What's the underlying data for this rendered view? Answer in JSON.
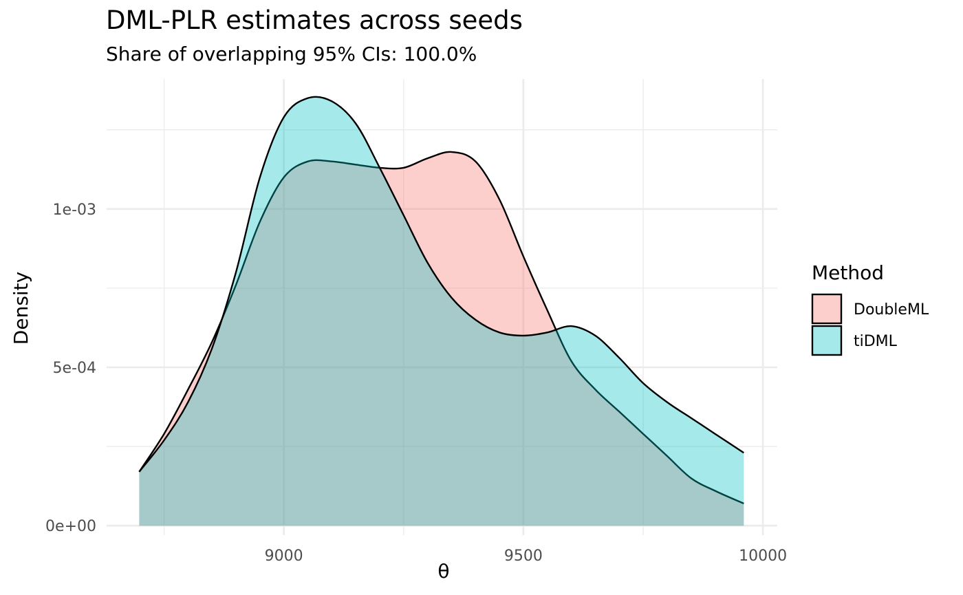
{
  "chart_data": {
    "type": "area",
    "title": "DML-PLR estimates across seeds",
    "subtitle": "Share of overlapping 95% CIs: 100.0%",
    "xlabel": "θ",
    "ylabel": "Density",
    "xlim": [
      8630,
      10030
    ],
    "ylim": [
      -3e-05,
      0.00141
    ],
    "x_ticks": [
      9000,
      9500,
      10000
    ],
    "x_tick_labels": [
      "9000",
      "9500",
      "10000"
    ],
    "y_ticks": [
      0,
      0.0005,
      0.001
    ],
    "y_tick_labels": [
      "0e+00",
      "5e-04",
      "1e-03"
    ],
    "grid": true,
    "legend_title": "Method",
    "legend_position": "right",
    "series": [
      {
        "name": "DoubleML",
        "color": "#F8766D",
        "x": [
          8698,
          8750,
          8800,
          8850,
          8900,
          8950,
          9000,
          9050,
          9100,
          9150,
          9200,
          9250,
          9300,
          9350,
          9400,
          9450,
          9500,
          9550,
          9600,
          9650,
          9700,
          9750,
          9800,
          9850,
          9900,
          9960
        ],
        "y": [
          0.00017,
          0.00029,
          0.00043,
          0.00058,
          0.00076,
          0.00096,
          0.0011,
          0.00115,
          0.00115,
          0.00114,
          0.00113,
          0.00113,
          0.00116,
          0.00118,
          0.00115,
          0.00103,
          0.00085,
          0.00068,
          0.00052,
          0.00043,
          0.00036,
          0.00029,
          0.00022,
          0.00015,
          0.00011,
          7e-05
        ]
      },
      {
        "name": "tiDML",
        "color": "#00BFC4",
        "x": [
          8698,
          8750,
          8800,
          8850,
          8900,
          8950,
          9000,
          9050,
          9100,
          9150,
          9200,
          9250,
          9300,
          9350,
          9400,
          9450,
          9500,
          9550,
          9600,
          9650,
          9700,
          9750,
          9800,
          9850,
          9900,
          9960
        ],
        "y": [
          0.00017,
          0.00027,
          0.00039,
          0.00056,
          0.0008,
          0.0011,
          0.00129,
          0.00135,
          0.00134,
          0.00127,
          0.00113,
          0.00098,
          0.00083,
          0.00072,
          0.00065,
          0.00061,
          0.0006,
          0.00061,
          0.00063,
          0.0006,
          0.00053,
          0.00045,
          0.00039,
          0.00034,
          0.00029,
          0.00023
        ]
      }
    ]
  }
}
